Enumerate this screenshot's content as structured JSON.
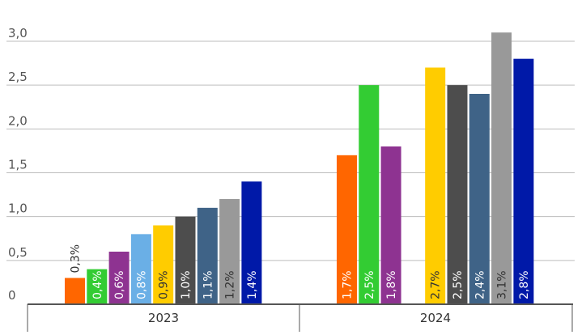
{
  "chart_data": {
    "type": "bar",
    "title": "",
    "xlabel": "",
    "ylabel": "",
    "ylim": [
      0,
      3.0
    ],
    "yticks": [
      "0",
      "0,5",
      "1,0",
      "1,5",
      "2,0",
      "2,5",
      "3,0"
    ],
    "ytick_values": [
      0,
      0.5,
      1.0,
      1.5,
      2.0,
      2.5,
      3.0
    ],
    "grid": true,
    "legend": "none",
    "groups": [
      {
        "category": "2023",
        "bars": [
          {
            "value": 0.3,
            "label": "0,3%",
            "color": "#ff6600"
          },
          {
            "value": 0.4,
            "label": "0,4%",
            "color": "#33cc33"
          },
          {
            "value": 0.6,
            "label": "0,6%",
            "color": "#8e3391"
          },
          {
            "value": 0.8,
            "label": "0,8%",
            "color": "#6aafe6"
          },
          {
            "value": 0.9,
            "label": "0,9%",
            "color": "#ffcc00"
          },
          {
            "value": 1.0,
            "label": "1,0%",
            "color": "#4d4d4d"
          },
          {
            "value": 1.1,
            "label": "1,1%",
            "color": "#3f6387"
          },
          {
            "value": 1.2,
            "label": "1,2%",
            "color": "#999999"
          },
          {
            "value": 1.4,
            "label": "1,4%",
            "color": "#0019a8"
          }
        ]
      },
      {
        "category": "2024",
        "bars": [
          {
            "value": 1.7,
            "label": "1,7%",
            "color": "#ff6600"
          },
          {
            "value": 2.5,
            "label": "2,5%",
            "color": "#33cc33"
          },
          {
            "value": 1.8,
            "label": "1,8%",
            "color": "#8e3391"
          },
          {
            "value": null,
            "label": "",
            "color": "#6aafe6"
          },
          {
            "value": 2.7,
            "label": "2,7%",
            "color": "#ffcc00"
          },
          {
            "value": 2.5,
            "label": "2,5%",
            "color": "#4d4d4d"
          },
          {
            "value": 2.4,
            "label": "2,4%",
            "color": "#3f6387"
          },
          {
            "value": 3.1,
            "label": "3,1%",
            "color": "#999999"
          },
          {
            "value": 2.8,
            "label": "2,8%",
            "color": "#0019a8"
          }
        ]
      }
    ]
  }
}
